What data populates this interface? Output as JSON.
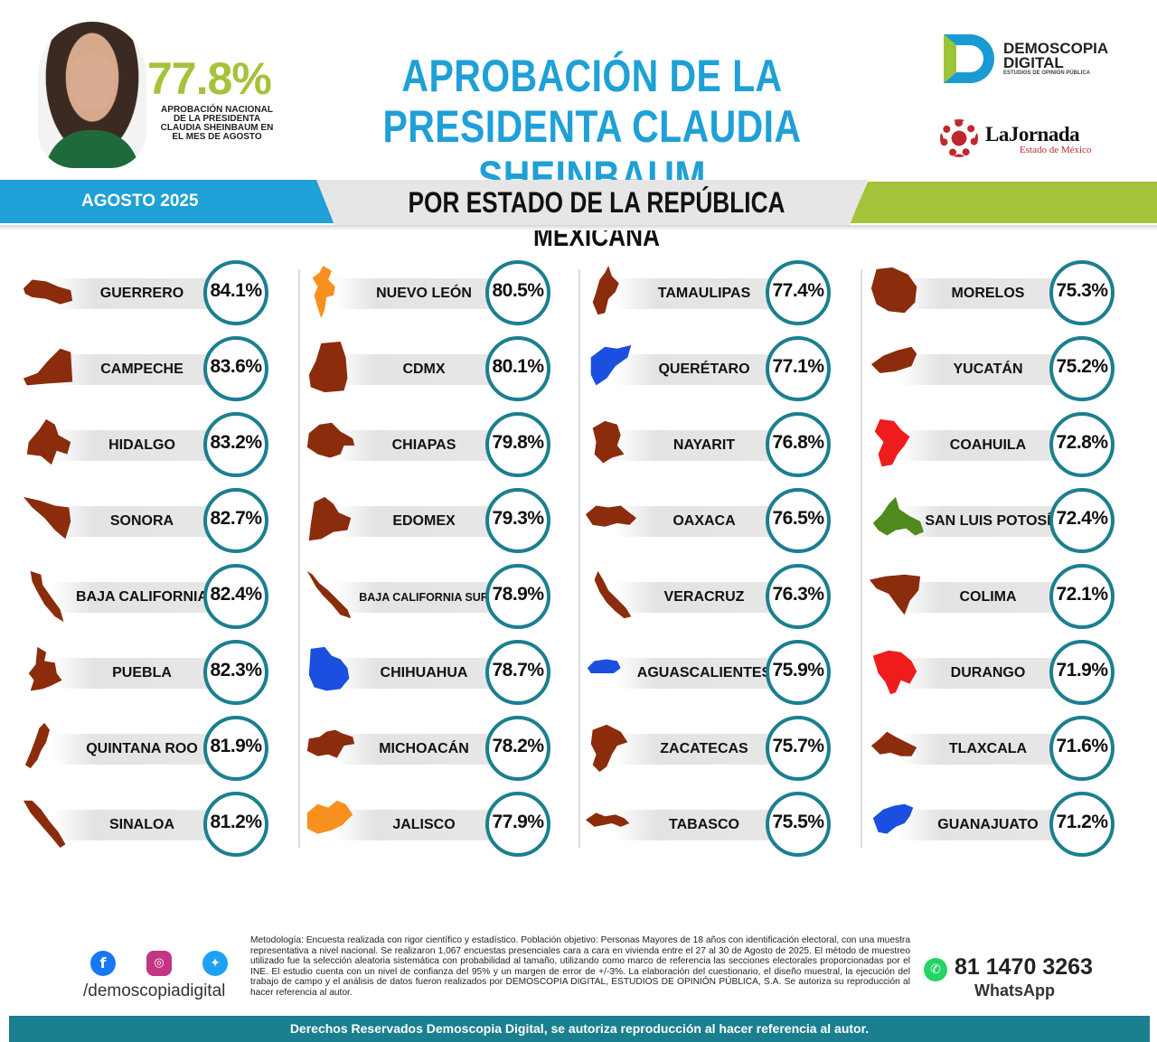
{
  "header": {
    "national_value": "77.8%",
    "national_note": "APROBACIÓN NACIONAL DE LA PRESIDENTA CLAUDIA SHEINBAUM EN EL MES DE AGOSTO",
    "title_line1": "APROBACIÓN DE LA",
    "title_line2": "PRESIDENTA CLAUDIA SHEINBAUM",
    "logo_brand": "DEMOSCOPIA DIGITAL",
    "logo_tagline": "ESTUDIOS DE OPINIÓN PÚBLICA",
    "partner_name": "LaJornada",
    "partner_sub": "Estado de México"
  },
  "banner": {
    "date": "AGOSTO 2025",
    "subtitle": "POR ESTADO DE LA REPÚBLICA MEXICANA"
  },
  "colors": {
    "blue": "#1fa0d6",
    "green": "#a5c23b",
    "teal": "#1b7f8f",
    "brown": "#8b2c0c",
    "orange": "#f7901e",
    "state_blue": "#1a4fe0",
    "red": "#ee1c1c",
    "olive": "#4f8a1c"
  },
  "chart_data": {
    "type": "table",
    "title": "APROBACIÓN DE LA PRESIDENTA CLAUDIA SHEINBAUM",
    "subtitle": "POR ESTADO DE LA REPÚBLICA MEXICANA",
    "unit": "%",
    "columns": [
      [
        {
          "state": "GUERRERO",
          "value": 84.1,
          "label": "84.1%",
          "color": "#8b2c0c"
        },
        {
          "state": "CAMPECHE",
          "value": 83.6,
          "label": "83.6%",
          "color": "#8b2c0c"
        },
        {
          "state": "HIDALGO",
          "value": 83.2,
          "label": "83.2%",
          "color": "#8b2c0c"
        },
        {
          "state": "SONORA",
          "value": 82.7,
          "label": "82.7%",
          "color": "#8b2c0c"
        },
        {
          "state": "BAJA CALIFORNIA",
          "value": 82.4,
          "label": "82.4%",
          "color": "#8b2c0c"
        },
        {
          "state": "PUEBLA",
          "value": 82.3,
          "label": "82.3%",
          "color": "#8b2c0c"
        },
        {
          "state": "QUINTANA ROO",
          "value": 81.9,
          "label": "81.9%",
          "color": "#8b2c0c"
        },
        {
          "state": "SINALOA",
          "value": 81.2,
          "label": "81.2%",
          "color": "#8b2c0c"
        }
      ],
      [
        {
          "state": "NUEVO LEÓN",
          "value": 80.5,
          "label": "80.5%",
          "color": "#f7901e"
        },
        {
          "state": "CDMX",
          "value": 80.1,
          "label": "80.1%",
          "color": "#8b2c0c"
        },
        {
          "state": "CHIAPAS",
          "value": 79.8,
          "label": "79.8%",
          "color": "#8b2c0c"
        },
        {
          "state": "EDOMEX",
          "value": 79.3,
          "label": "79.3%",
          "color": "#8b2c0c"
        },
        {
          "state": "BAJA CALIFORNIA SUR",
          "value": 78.9,
          "label": "78.9%",
          "color": "#8b2c0c"
        },
        {
          "state": "CHIHUAHUA",
          "value": 78.7,
          "label": "78.7%",
          "color": "#1a4fe0"
        },
        {
          "state": "MICHOACÁN",
          "value": 78.2,
          "label": "78.2%",
          "color": "#8b2c0c"
        },
        {
          "state": "JALISCO",
          "value": 77.9,
          "label": "77.9%",
          "color": "#f7901e"
        }
      ],
      [
        {
          "state": "TAMAULIPAS",
          "value": 77.4,
          "label": "77.4%",
          "color": "#8b2c0c"
        },
        {
          "state": "QUERÉTARO",
          "value": 77.1,
          "label": "77.1%",
          "color": "#1a4fe0"
        },
        {
          "state": "NAYARIT",
          "value": 76.8,
          "label": "76.8%",
          "color": "#8b2c0c"
        },
        {
          "state": "OAXACA",
          "value": 76.5,
          "label": "76.5%",
          "color": "#8b2c0c"
        },
        {
          "state": "VERACRUZ",
          "value": 76.3,
          "label": "76.3%",
          "color": "#8b2c0c"
        },
        {
          "state": "AGUASCALIENTES",
          "value": 75.9,
          "label": "75.9%",
          "color": "#1a4fe0"
        },
        {
          "state": "ZACATECAS",
          "value": 75.7,
          "label": "75.7%",
          "color": "#8b2c0c"
        },
        {
          "state": "TABASCO",
          "value": 75.5,
          "label": "75.5%",
          "color": "#8b2c0c"
        }
      ],
      [
        {
          "state": "MORELOS",
          "value": 75.3,
          "label": "75.3%",
          "color": "#8b2c0c"
        },
        {
          "state": "YUCATÁN",
          "value": 75.2,
          "label": "75.2%",
          "color": "#8b2c0c"
        },
        {
          "state": "COAHUILA",
          "value": 72.8,
          "label": "72.8%",
          "color": "#ee1c1c"
        },
        {
          "state": "SAN LUIS POTOSÍ",
          "value": 72.4,
          "label": "72.4%",
          "color": "#4f8a1c"
        },
        {
          "state": "COLIMA",
          "value": 72.1,
          "label": "72.1%",
          "color": "#8b2c0c"
        },
        {
          "state": "DURANGO",
          "value": 71.9,
          "label": "71.9%",
          "color": "#ee1c1c"
        },
        {
          "state": "TLAXCALA",
          "value": 71.6,
          "label": "71.6%",
          "color": "#8b2c0c"
        },
        {
          "state": "GUANAJUATO",
          "value": 71.2,
          "label": "71.2%",
          "color": "#1a4fe0"
        }
      ]
    ]
  },
  "footer": {
    "social_icons": [
      "facebook-icon",
      "instagram-icon",
      "twitter-icon"
    ],
    "handle": "/demoscopiadigital",
    "methodology": "Metodología: Encuesta realizada con rigor científico y estadístico. Población objetivo: Personas Mayores de 18 años con identificación electoral, con una muestra representativa a nivel nacional. Se realizaron 1,067 encuestas presenciales cara a cara en vivienda entre el 27 al 30 de Agosto de 2025. El método de muestreo utilizado fue la selección aleatoria sistemática con probabilidad al tamaño, utilizando como marco de referencia las secciones electorales proporcionadas por el INE. El estudio cuenta con un nivel de confianza del 95% y un margen de error de +/-3%. La elaboración del cuestionario, el diseño muestral, la ejecución del trabajo de campo y el análisis de datos fueron realizados por DEMOSCOPIA DIGITAL, ESTUDIOS DE OPINIÓN PÚBLICA, S.A. Se autoriza su reproducción al hacer referencia al autor.",
    "phone": "81 1470 3263",
    "phone_label": "WhatsApp",
    "rights": "Derechos Reservados Demoscopia Digital, se autoriza reproducción al hacer referencia al autor."
  }
}
